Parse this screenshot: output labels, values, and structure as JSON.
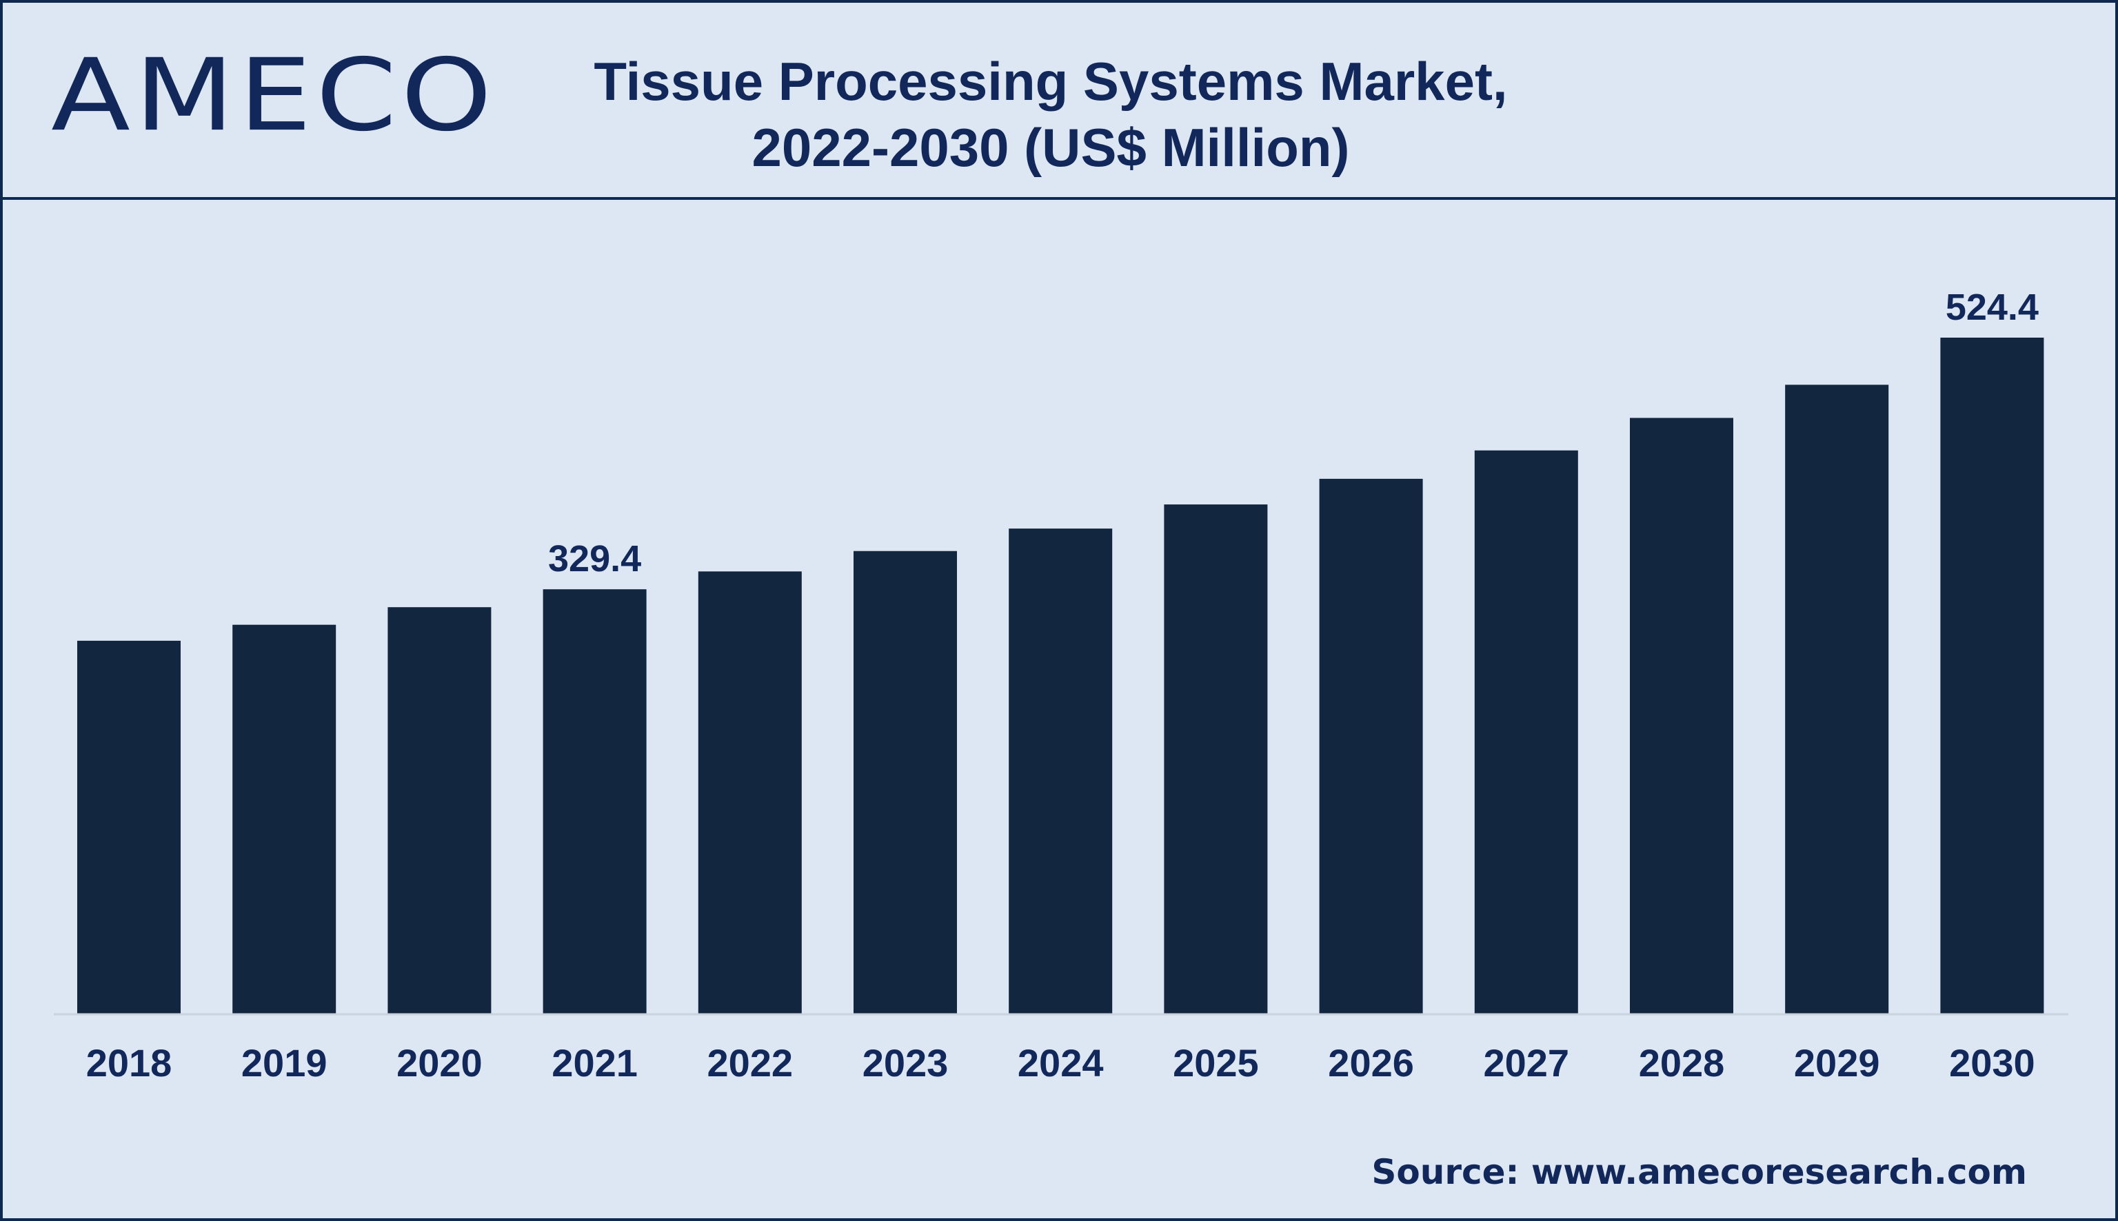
{
  "logo": {
    "text": "AMECO"
  },
  "header": {
    "title_line1": "Tissue Processing Systems Market,",
    "title_line2": "2022-2030 (US$ Million)"
  },
  "source": {
    "text": "Source: www.amecoresearch.com"
  },
  "colors": {
    "background": "#dde7f3",
    "bar": "#13263f",
    "text": "#13285a",
    "frame": "#0f2850",
    "axis": "#c9d3de"
  },
  "chart_data": {
    "type": "bar",
    "title": "Tissue Processing Systems Market, 2022-2030 (US$ Million)",
    "categories": [
      "2018",
      "2019",
      "2020",
      "2021",
      "2022",
      "2023",
      "2024",
      "2025",
      "2026",
      "2027",
      "2028",
      "2029",
      "2030"
    ],
    "values": [
      289.5,
      301.9,
      315.5,
      329.4,
      343.2,
      359.0,
      376.4,
      395.1,
      415.0,
      437.0,
      462.2,
      487.9,
      524.4
    ],
    "data_labels": [
      {
        "index": 3,
        "text": "329.4"
      },
      {
        "index": 12,
        "text": "524.4"
      }
    ],
    "xlabel": "",
    "ylabel": "",
    "ylim": [
      0,
      524.4
    ],
    "grid": false,
    "legend": "none"
  }
}
